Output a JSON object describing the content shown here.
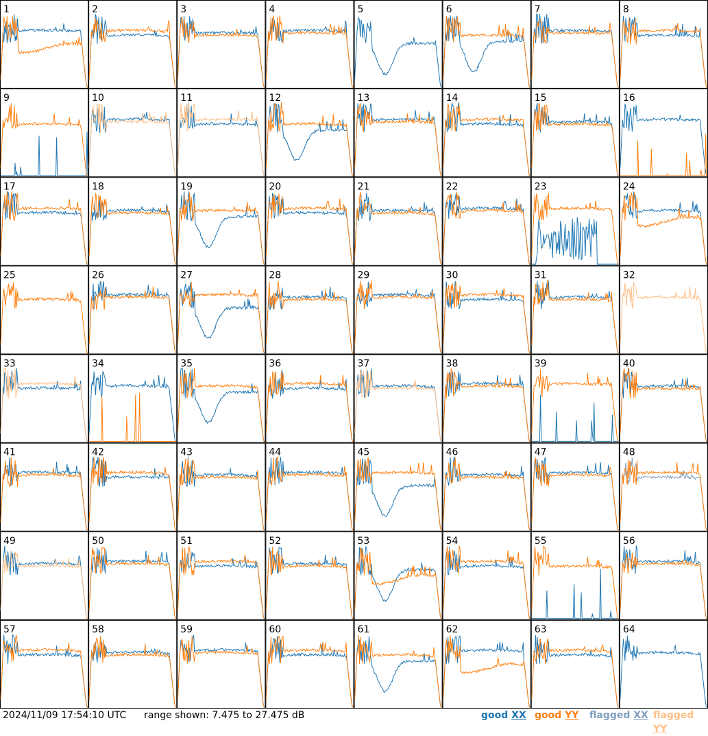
{
  "chart_data": {
    "type": "line",
    "panels": [
      {
        "id": "1",
        "xx": "v",
        "yy": "d"
      },
      {
        "id": "2",
        "xx": "n",
        "yy": "n"
      },
      {
        "id": "3",
        "xx": "n",
        "yy": "n"
      },
      {
        "id": "4",
        "xx": "n",
        "yy": "n"
      },
      {
        "id": "5",
        "xx": "dip",
        "yy": "none"
      },
      {
        "id": "6",
        "xx": "dip",
        "yy": "n"
      },
      {
        "id": "7",
        "xx": "n",
        "yy": "n"
      },
      {
        "id": "8",
        "xx": "n",
        "yy": "n"
      },
      {
        "id": "9",
        "xx": "low",
        "yy": "n"
      },
      {
        "id": "10",
        "xx": "n",
        "yy": "flag"
      },
      {
        "id": "11",
        "xx": "n",
        "yy": "flag"
      },
      {
        "id": "12",
        "xx": "dip",
        "yy": "n"
      },
      {
        "id": "13",
        "xx": "n",
        "yy": "n"
      },
      {
        "id": "14",
        "xx": "n",
        "yy": "n"
      },
      {
        "id": "15",
        "xx": "n",
        "yy": "n"
      },
      {
        "id": "16",
        "xx": "n",
        "yy": "low"
      },
      {
        "id": "17",
        "xx": "n",
        "yy": "n"
      },
      {
        "id": "18",
        "xx": "n",
        "yy": "n"
      },
      {
        "id": "19",
        "xx": "dip",
        "yy": "n"
      },
      {
        "id": "20",
        "xx": "n",
        "yy": "n"
      },
      {
        "id": "21",
        "xx": "n",
        "yy": "n"
      },
      {
        "id": "22",
        "xx": "n",
        "yy": "n"
      },
      {
        "id": "23",
        "xx": "noise",
        "yy": "n"
      },
      {
        "id": "24",
        "xx": "n",
        "yy": "d"
      },
      {
        "id": "25",
        "xx": "none",
        "yy": "n"
      },
      {
        "id": "26",
        "xx": "n",
        "yy": "n"
      },
      {
        "id": "27",
        "xx": "dip",
        "yy": "n"
      },
      {
        "id": "28",
        "xx": "n",
        "yy": "n"
      },
      {
        "id": "29",
        "xx": "n",
        "yy": "n"
      },
      {
        "id": "30",
        "xx": "n",
        "yy": "n"
      },
      {
        "id": "31",
        "xx": "n",
        "yy": "n"
      },
      {
        "id": "32",
        "xx": "none",
        "yy": "flag"
      },
      {
        "id": "33",
        "xx": "n",
        "yy": "flag"
      },
      {
        "id": "34",
        "xx": "n",
        "yy": "low"
      },
      {
        "id": "35",
        "xx": "dip",
        "yy": "n"
      },
      {
        "id": "36",
        "xx": "n",
        "yy": "n"
      },
      {
        "id": "37",
        "xx": "n",
        "yy": "flag"
      },
      {
        "id": "38",
        "xx": "n",
        "yy": "n"
      },
      {
        "id": "39",
        "xx": "low",
        "yy": "n"
      },
      {
        "id": "40",
        "xx": "n",
        "yy": "n"
      },
      {
        "id": "41",
        "xx": "n",
        "yy": "n"
      },
      {
        "id": "42",
        "xx": "n",
        "yy": "n"
      },
      {
        "id": "43",
        "xx": "n",
        "yy": "n"
      },
      {
        "id": "44",
        "xx": "n",
        "yy": "n"
      },
      {
        "id": "45",
        "xx": "dip",
        "yy": "n"
      },
      {
        "id": "46",
        "xx": "n",
        "yy": "n"
      },
      {
        "id": "47",
        "xx": "n",
        "yy": "n"
      },
      {
        "id": "48",
        "xx": "flag",
        "yy": "n"
      },
      {
        "id": "49",
        "xx": "n",
        "yy": "flag"
      },
      {
        "id": "50",
        "xx": "n",
        "yy": "n"
      },
      {
        "id": "51",
        "xx": "n",
        "yy": "n"
      },
      {
        "id": "52",
        "xx": "n",
        "yy": "n"
      },
      {
        "id": "53",
        "xx": "dip",
        "yy": "d"
      },
      {
        "id": "54",
        "xx": "n",
        "yy": "n"
      },
      {
        "id": "55",
        "xx": "low",
        "yy": "n"
      },
      {
        "id": "56",
        "xx": "n",
        "yy": "n"
      },
      {
        "id": "57",
        "xx": "n",
        "yy": "n"
      },
      {
        "id": "58",
        "xx": "n",
        "yy": "n"
      },
      {
        "id": "59",
        "xx": "n",
        "yy": "n"
      },
      {
        "id": "60",
        "xx": "n",
        "yy": "n"
      },
      {
        "id": "61",
        "xx": "dip",
        "yy": "n"
      },
      {
        "id": "62",
        "xx": "n",
        "yy": "d"
      },
      {
        "id": "63",
        "xx": "n",
        "yy": "n"
      },
      {
        "id": "64",
        "xx": "n",
        "yy": "none"
      }
    ],
    "ylim": [
      7.475,
      27.475
    ],
    "yunit": "dB",
    "series_colors": {
      "good_xx": "#1f77b4",
      "good_yy": "#ff7f0e",
      "flagged_xx": "#7f9fbf",
      "flagged_yy": "#ffbf87"
    }
  },
  "footer": {
    "timestamp": "2024/11/09 17:54:10 UTC",
    "range_label": "range shown: 7.475 to 27.475 dB"
  },
  "legend": {
    "good_xx_prefix": "good ",
    "good_xx_suffix": "XX",
    "good_yy_prefix": "good ",
    "good_yy_suffix": "YY",
    "flagged_xx_prefix": "flagged ",
    "flagged_xx_suffix": "XX",
    "flagged_yy_prefix": "flagged ",
    "flagged_yy_suffix": "YY"
  }
}
